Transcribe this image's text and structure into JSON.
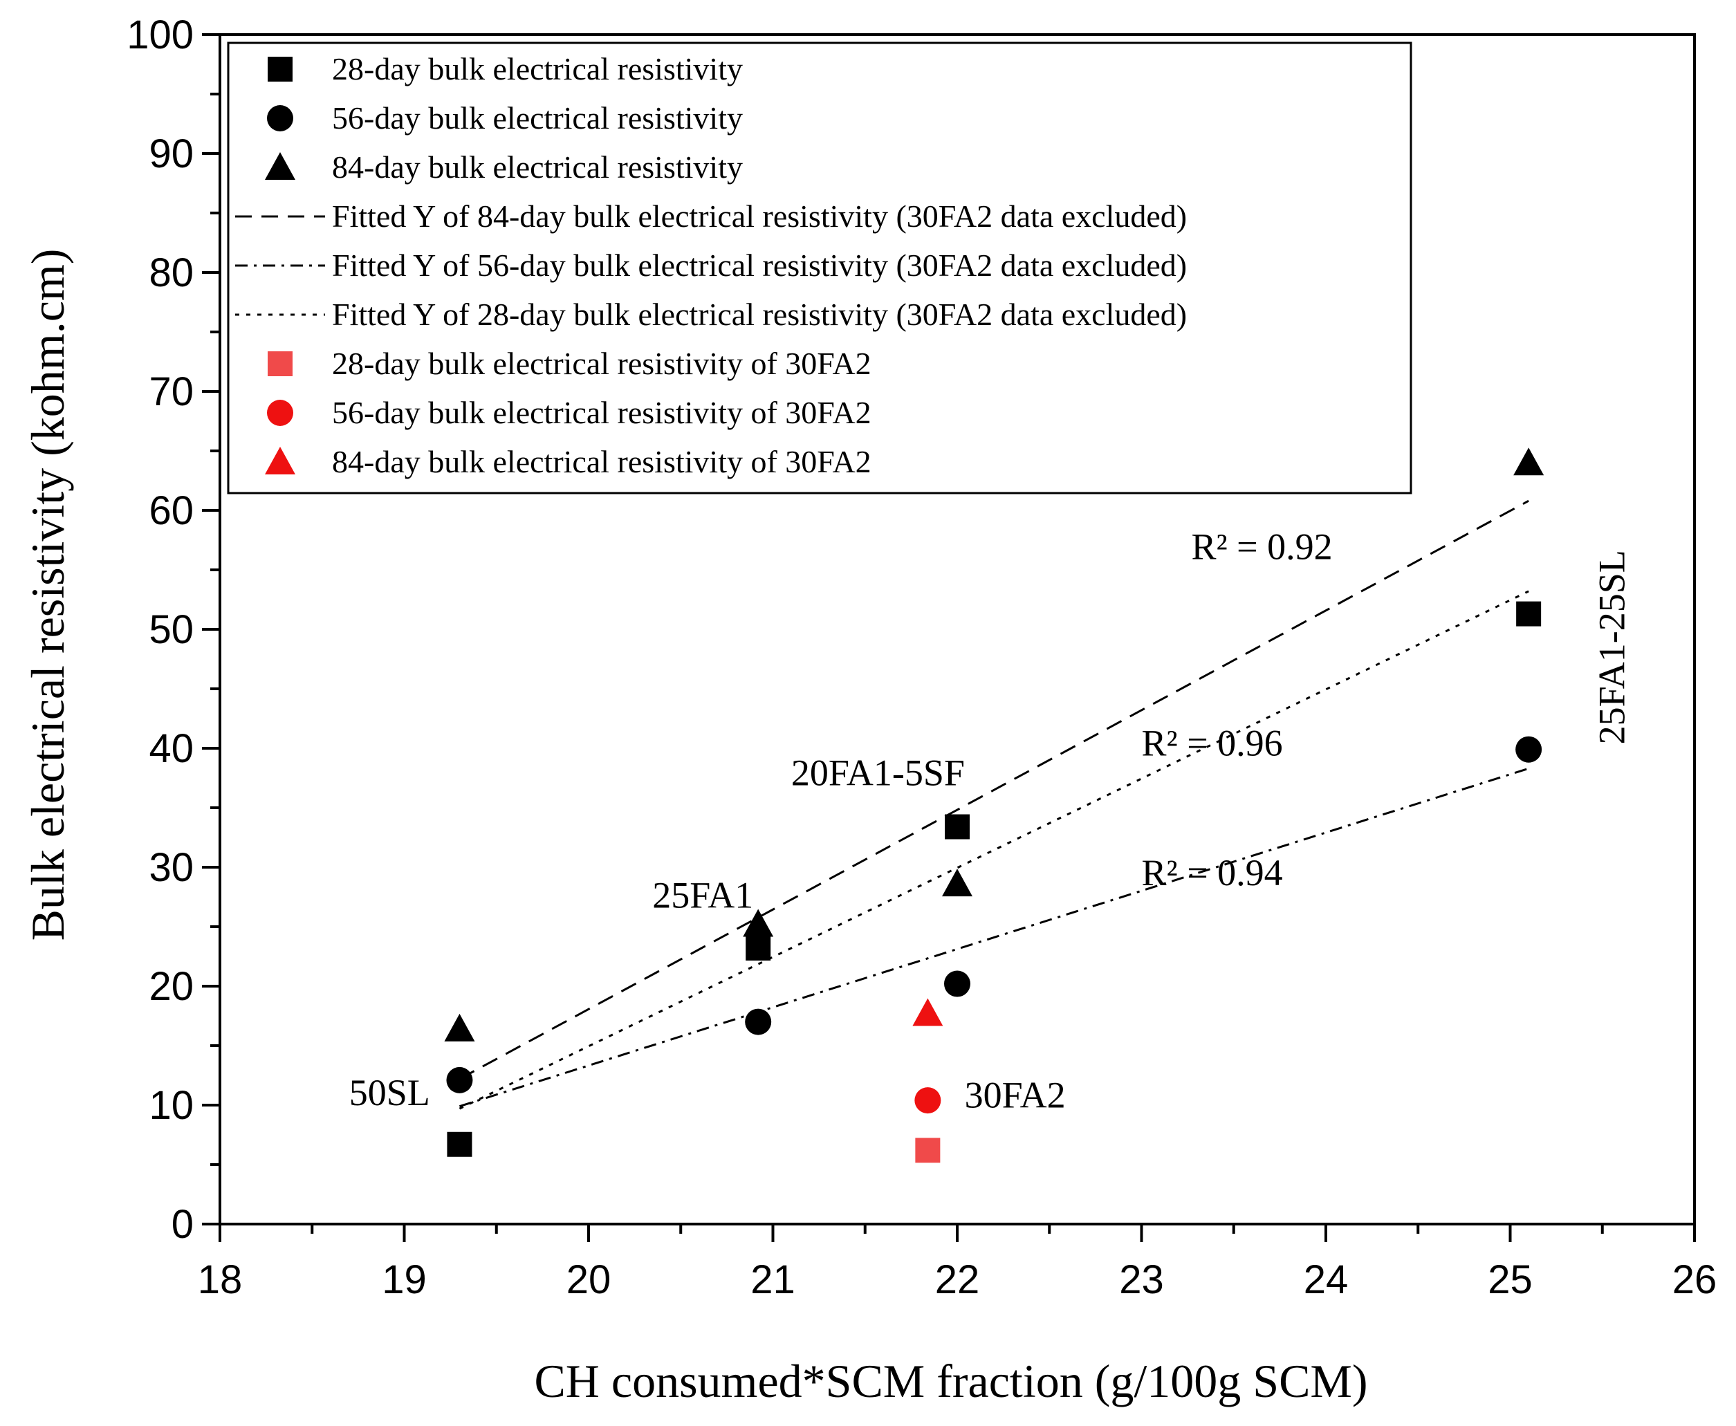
{
  "chart_data": {
    "type": "scatter",
    "xlabel": "CH consumed*SCM fraction (g/100g SCM)",
    "ylabel": "Bulk electrical resistivity (kohm.cm)",
    "xlim": [
      18,
      26
    ],
    "ylim": [
      0,
      100
    ],
    "x_ticks": [
      18,
      19,
      20,
      21,
      22,
      23,
      24,
      25,
      26
    ],
    "y_ticks": [
      0,
      10,
      20,
      30,
      40,
      50,
      60,
      70,
      80,
      90,
      100
    ],
    "grid": false,
    "legend_position": "top-left",
    "series": [
      {
        "name": "28-day bulk electrical resistivity",
        "marker": "square",
        "color": "#000000",
        "points": [
          {
            "x": 19.3,
            "y": 6.7
          },
          {
            "x": 20.92,
            "y": 23.2
          },
          {
            "x": 22.0,
            "y": 33.4
          },
          {
            "x": 25.1,
            "y": 51.3
          }
        ]
      },
      {
        "name": "56-day bulk electrical resistivity",
        "marker": "circle",
        "color": "#000000",
        "points": [
          {
            "x": 19.3,
            "y": 12.1
          },
          {
            "x": 20.92,
            "y": 17.0
          },
          {
            "x": 22.0,
            "y": 20.2
          },
          {
            "x": 25.1,
            "y": 39.9
          }
        ]
      },
      {
        "name": "84-day bulk electrical resistivity",
        "marker": "triangle",
        "color": "#000000",
        "points": [
          {
            "x": 19.3,
            "y": 16.4
          },
          {
            "x": 20.92,
            "y": 25.2
          },
          {
            "x": 22.0,
            "y": 28.6
          },
          {
            "x": 25.1,
            "y": 64.0
          }
        ]
      },
      {
        "name": "28-day bulk electrical resistivity of 30FA2",
        "marker": "square",
        "color": "#f04a4a",
        "points": [
          {
            "x": 21.84,
            "y": 6.2
          }
        ]
      },
      {
        "name": "56-day bulk electrical resistivity of 30FA2",
        "marker": "circle",
        "color": "#ee1111",
        "points": [
          {
            "x": 21.84,
            "y": 10.4
          }
        ]
      },
      {
        "name": "84-day bulk electrical resistivity of 30FA2",
        "marker": "triangle",
        "color": "#ee1111",
        "points": [
          {
            "x": 21.84,
            "y": 17.7
          }
        ]
      }
    ],
    "fits": [
      {
        "name": "Fitted Y of 84-day bulk electrical resistivity (30FA2 data excluded)",
        "style": "dashed",
        "points": [
          {
            "x": 19.3,
            "y": 12.2
          },
          {
            "x": 25.1,
            "y": 60.8
          }
        ]
      },
      {
        "name": "Fitted Y of 56-day bulk electrical resistivity (30FA2 data excluded)",
        "style": "dashdot",
        "points": [
          {
            "x": 19.3,
            "y": 9.9
          },
          {
            "x": 25.1,
            "y": 38.3
          }
        ]
      },
      {
        "name": "Fitted Y of 28-day bulk electrical resistivity (30FA2 data excluded)",
        "style": "dotted",
        "points": [
          {
            "x": 19.3,
            "y": 9.7
          },
          {
            "x": 25.1,
            "y": 53.2
          }
        ]
      }
    ],
    "legend_order": [
      {
        "kind": "series",
        "index": 0
      },
      {
        "kind": "series",
        "index": 1
      },
      {
        "kind": "series",
        "index": 2
      },
      {
        "kind": "fit",
        "index": 0
      },
      {
        "kind": "fit",
        "index": 1
      },
      {
        "kind": "fit",
        "index": 2
      },
      {
        "kind": "series",
        "index": 3
      },
      {
        "kind": "series",
        "index": 4
      },
      {
        "kind": "series",
        "index": 5
      }
    ],
    "annotations": [
      {
        "text": "50SL",
        "x": 19.14,
        "y": 10.0,
        "color": "#000000",
        "anchor": "end",
        "rotate": false
      },
      {
        "text": "25FA1",
        "x": 20.62,
        "y": 26.6,
        "color": "#000000",
        "anchor": "middle",
        "rotate": false
      },
      {
        "text": "20FA1-5SF",
        "x": 21.57,
        "y": 36.9,
        "color": "#000000",
        "anchor": "middle",
        "rotate": false
      },
      {
        "text": "25FA1-25SL",
        "x": 25.62,
        "y": 48.5,
        "color": "#000000",
        "anchor": "middle",
        "rotate": true
      },
      {
        "text": "30FA2",
        "x": 22.04,
        "y": 9.8,
        "color": "#ee1111",
        "anchor": "start",
        "rotate": false
      }
    ],
    "r2_labels": [
      {
        "text": "R² = 0.92",
        "x": 23.27,
        "y": 55.9
      },
      {
        "text": "R² = 0.96",
        "x": 23.0,
        "y": 39.4
      },
      {
        "text": "R² = 0.94",
        "x": 23.0,
        "y": 28.5
      }
    ]
  }
}
